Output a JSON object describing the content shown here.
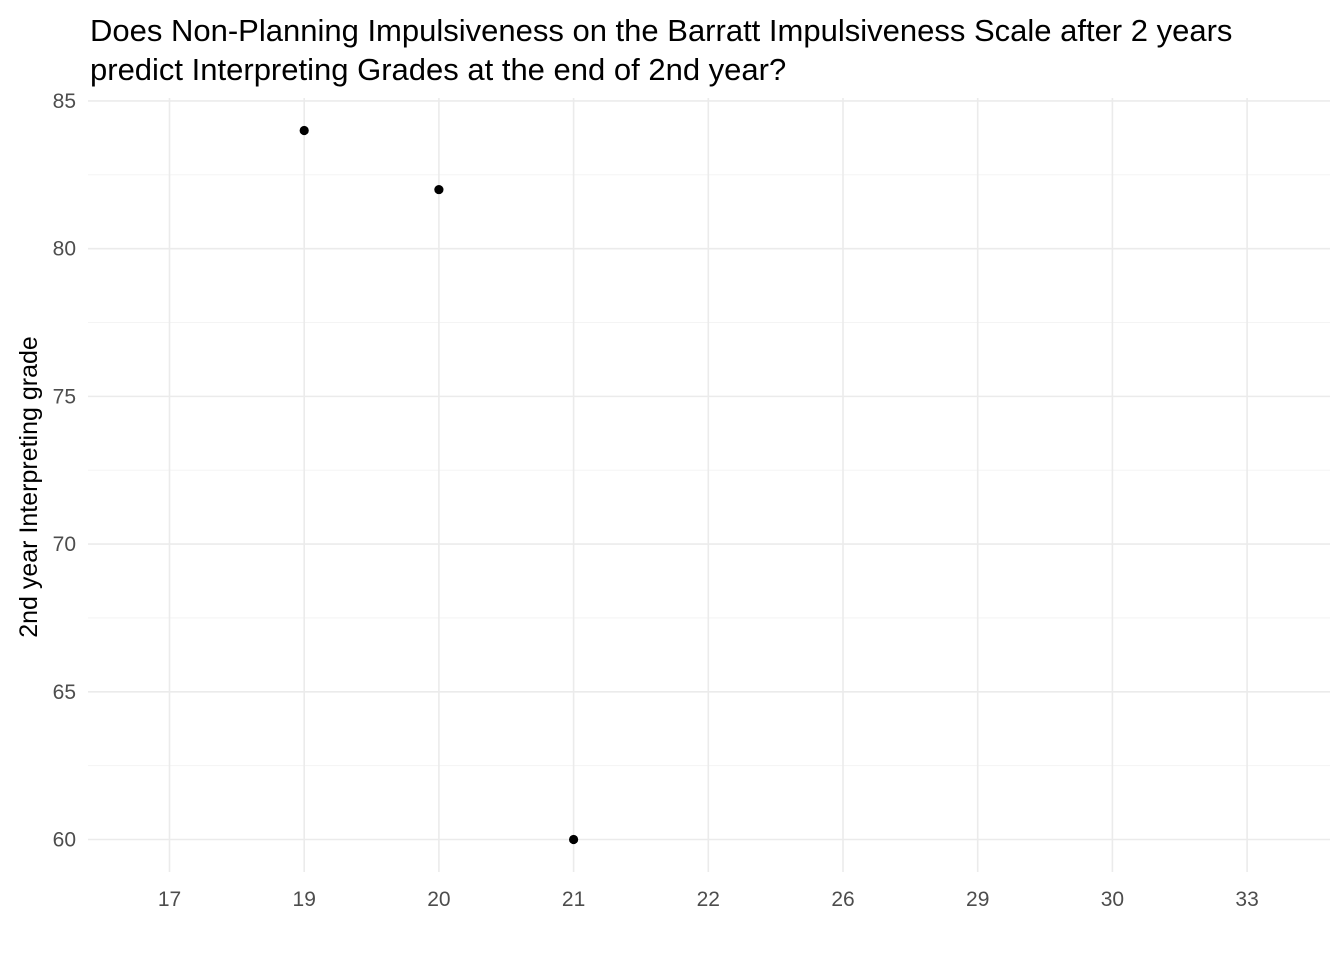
{
  "chart_data": {
    "type": "scatter",
    "title": "Does Non-Planning Impulsiveness on the Barratt Impulsiveness Scale after 2 years predict Interpreting Grades at the end of 2nd year?",
    "title_lines": [
      "Does Non-Planning Impulsiveness on the Barratt Impulsiveness Scale after 2 years",
      "predict Interpreting Grades at the end of 2nd year?"
    ],
    "xlabel": "",
    "ylabel": "2nd year Interpreting grade",
    "x_axis_type": "categorical",
    "categories": [
      "17",
      "19",
      "20",
      "21",
      "22",
      "26",
      "29",
      "30",
      "33"
    ],
    "ylim": [
      58.9,
      85.1
    ],
    "y_ticks": [
      60,
      65,
      70,
      75,
      80,
      85
    ],
    "grid": true,
    "legend": "none",
    "point_color": "#000000",
    "points": [
      {
        "x": "19",
        "y": 84
      },
      {
        "x": "20",
        "y": 82
      },
      {
        "x": "21",
        "y": 60
      }
    ]
  }
}
